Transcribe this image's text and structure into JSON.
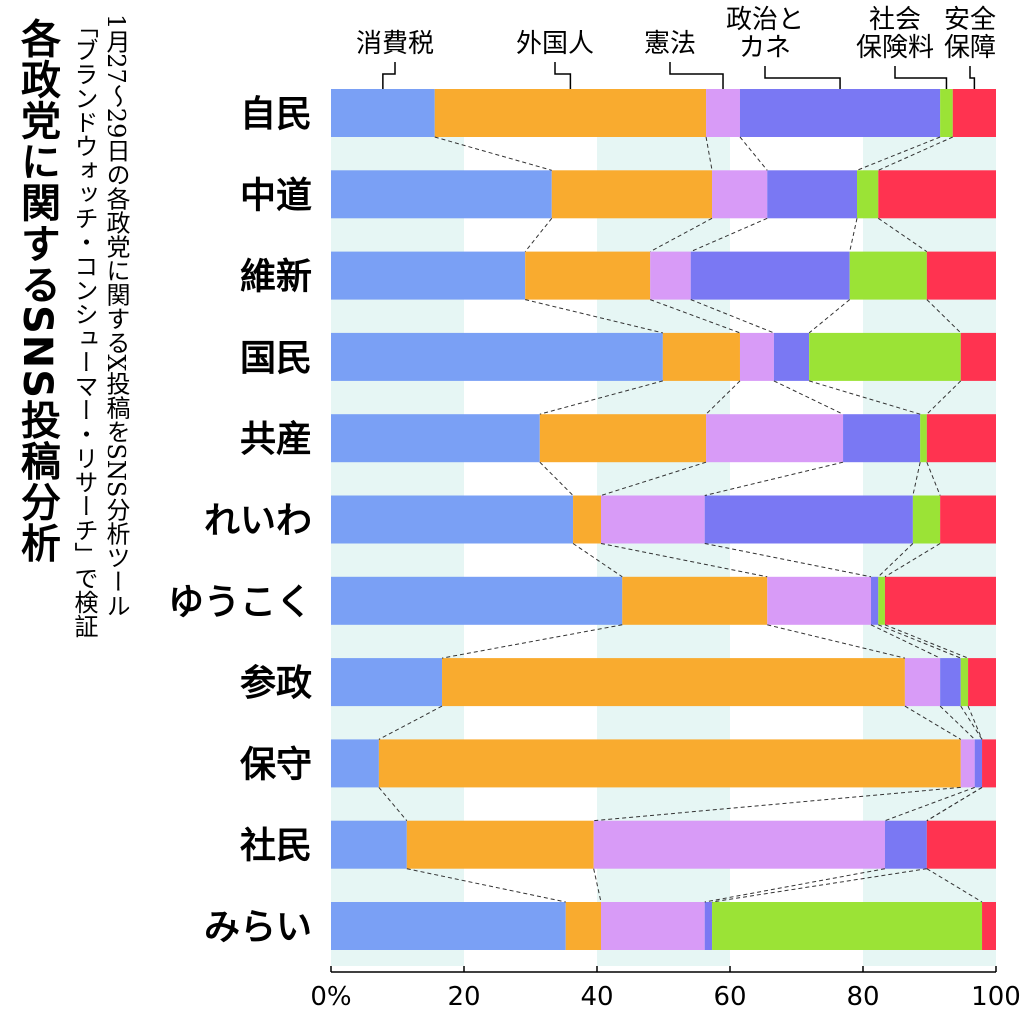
{
  "title": "各政党に関するSNS投稿分析",
  "subtitle_lines": [
    "1月27～29日の各政党に関するX投稿をSNS分析ツール",
    "「ブランドウォッチ・コンシューマー・リサーチ」で検証"
  ],
  "chart_data": {
    "type": "bar",
    "orientation": "horizontal",
    "stacked": true,
    "normalized_percent": true,
    "title": "各政党に関するSNS投稿分析",
    "categories": [
      "自民",
      "中道",
      "維新",
      "国民",
      "共産",
      "れいわ",
      "ゆうこく",
      "参政",
      "保守",
      "社民",
      "みらい"
    ],
    "series": [
      {
        "name": "消費税",
        "color": "#7aa0f5",
        "values": [
          15.6,
          33.2,
          29.2,
          49.9,
          31.4,
          36.4,
          43.8,
          16.7,
          7.2,
          11.4,
          35.3
        ]
      },
      {
        "name": "外国人",
        "color": "#f9ab2f",
        "values": [
          40.8,
          24.1,
          18.8,
          11.6,
          25.0,
          4.2,
          21.8,
          69.6,
          87.5,
          28.1,
          5.3
        ]
      },
      {
        "name": "憲法",
        "color": "#d89bf7",
        "values": [
          5.1,
          8.3,
          6.1,
          5.1,
          20.6,
          15.6,
          15.6,
          5.3,
          2.1,
          43.8,
          15.6
        ]
      },
      {
        "name": "政治とカネ",
        "color": "#7a78f3",
        "values": [
          30.1,
          13.5,
          23.9,
          5.3,
          11.6,
          31.3,
          1.1,
          3.1,
          1.1,
          6.3,
          1.1
        ]
      },
      {
        "name": "社会保険料",
        "color": "#9be336",
        "values": [
          1.9,
          3.2,
          11.6,
          22.8,
          1.0,
          4.1,
          1.0,
          1.1,
          0.0,
          0.0,
          40.6
        ]
      },
      {
        "name": "安全保障",
        "color": "#ff3350",
        "values": [
          6.5,
          17.7,
          10.4,
          5.3,
          10.4,
          8.4,
          16.7,
          4.2,
          2.1,
          10.4,
          2.1
        ]
      }
    ],
    "legend_labels": [
      [
        "消費税"
      ],
      [
        "外国人"
      ],
      [
        "憲法"
      ],
      [
        "政治と",
        "カネ"
      ],
      [
        "社会",
        "保険料"
      ],
      [
        "安全",
        "保障"
      ]
    ],
    "xlim": [
      0,
      100
    ],
    "x_ticks": [
      "0%",
      "20",
      "40",
      "60",
      "80",
      "100"
    ],
    "legend_placement": "top",
    "background_bands": true,
    "band_color": "#e6f6f4",
    "connector_lines": "dashed"
  }
}
